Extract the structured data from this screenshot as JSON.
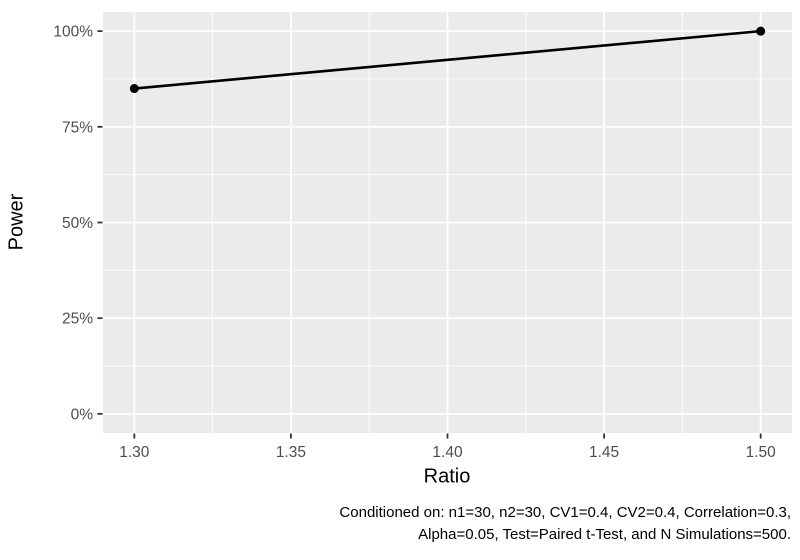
{
  "chart_data": {
    "type": "line",
    "title": "",
    "xlabel": "Ratio",
    "ylabel": "Power",
    "series": [
      {
        "name": "Power",
        "x": [
          1.3,
          1.5
        ],
        "y": [
          0.85,
          1.0
        ]
      }
    ],
    "xlim": [
      1.29,
      1.51
    ],
    "ylim": [
      -0.05,
      1.05
    ],
    "x_ticks": [
      {
        "value": 1.3,
        "label": "1.30"
      },
      {
        "value": 1.35,
        "label": "1.35"
      },
      {
        "value": 1.4,
        "label": "1.40"
      },
      {
        "value": 1.45,
        "label": "1.45"
      },
      {
        "value": 1.5,
        "label": "1.50"
      }
    ],
    "y_ticks": [
      {
        "value": 0.0,
        "label": "0%"
      },
      {
        "value": 0.25,
        "label": "25%"
      },
      {
        "value": 0.5,
        "label": "50%"
      },
      {
        "value": 0.75,
        "label": "75%"
      },
      {
        "value": 1.0,
        "label": "100%"
      }
    ],
    "x_minor_ticks": [
      1.325,
      1.375,
      1.425,
      1.475
    ],
    "y_minor_ticks": [
      0.125,
      0.375,
      0.625,
      0.875
    ],
    "grid": true,
    "legend": "none",
    "caption_line1": "Conditioned on: n1=30, n2=30, CV1=0.4, CV2=0.4, Correlation=0.3,",
    "caption_line2": "Alpha=0.05, Test=Paired t-Test, and N Simulations=500.",
    "colors": {
      "panel_bg": "#EBEBEB",
      "grid_major": "#FFFFFF",
      "grid_minor": "#FFFFFF",
      "tick_mark": "#333333",
      "tick_label": "#4D4D4D",
      "axis_title": "#000000",
      "line": "#000000",
      "point": "#000000",
      "caption": "#000000"
    }
  }
}
